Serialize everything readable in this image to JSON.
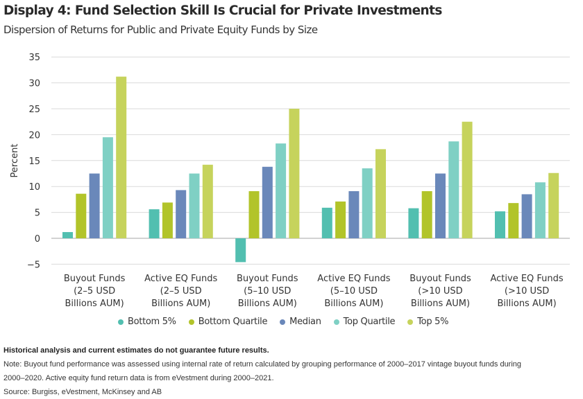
{
  "header": {
    "title": "Display 4: Fund Selection Skill Is Crucial for Private Investments",
    "subtitle": "Dispersion of Returns for Public and Private Equity Funds by Size"
  },
  "chart_data": {
    "type": "bar",
    "title": "Display 4: Fund Selection Skill Is Crucial for Private Investments",
    "subtitle": "Dispersion of Returns for Public and Private Equity Funds by Size",
    "xlabel": "",
    "ylabel": "Percent",
    "ylim": [
      -5,
      35
    ],
    "yticks": [
      35,
      30,
      25,
      20,
      15,
      10,
      5,
      0,
      -5
    ],
    "ytick_labels": [
      "35",
      "30",
      "25",
      "20",
      "15",
      "10",
      "5",
      "0",
      "−5"
    ],
    "grid": true,
    "legend_position": "bottom",
    "categories": [
      [
        "Buyout Funds",
        "(2–5 USD",
        "Billions AUM)"
      ],
      [
        "Active EQ Funds",
        "(2–5 USD",
        "Billions AUM)"
      ],
      [
        "Buyout Funds",
        "(5–10 USD",
        "Billions AUM)"
      ],
      [
        "Active EQ Funds",
        "(5–10 USD",
        "Billions AUM)"
      ],
      [
        "Buyout Funds",
        "(>10 USD",
        "Billions AUM)"
      ],
      [
        "Active EQ Funds",
        "(>10 USD",
        "Billions AUM)"
      ]
    ],
    "series": [
      {
        "name": "Bottom 5%",
        "color": "#52bfb0",
        "values": [
          1.2,
          5.6,
          -4.6,
          5.9,
          5.8,
          5.2
        ]
      },
      {
        "name": "Bottom Quartile",
        "color": "#b2c42a",
        "values": [
          8.6,
          6.9,
          9.1,
          7.1,
          9.1,
          6.8
        ]
      },
      {
        "name": "Median",
        "color": "#6a88ba",
        "values": [
          12.5,
          9.3,
          13.8,
          9.1,
          12.5,
          8.5
        ]
      },
      {
        "name": "Top Quartile",
        "color": "#7fd0c4",
        "values": [
          19.5,
          12.5,
          18.3,
          13.5,
          18.7,
          10.8
        ]
      },
      {
        "name": "Top 5%",
        "color": "#c6d35c",
        "values": [
          31.2,
          14.2,
          25.0,
          17.2,
          22.5,
          12.6
        ]
      }
    ]
  },
  "footer": {
    "disclaimer": "Historical analysis and current estimates do not guarantee future results.",
    "note_line1": "Note: Buyout fund performance was assessed using internal rate of return calculated by grouping performance of 2000–2017 vintage buyout funds during",
    "note_line2": "2000–2020. Active equity fund return data is from eVestment during 2000–2021.",
    "source": "Source: Burgiss, eVestment, McKinsey and AB"
  }
}
